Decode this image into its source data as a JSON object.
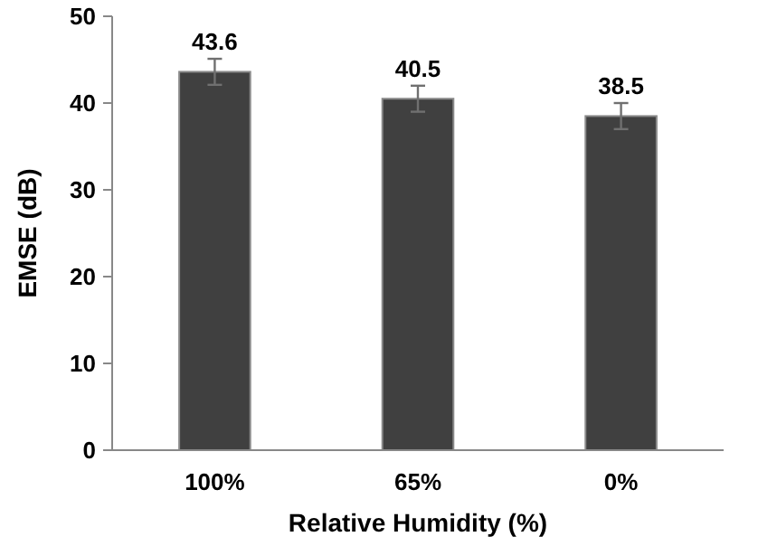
{
  "chart_data": {
    "type": "bar",
    "xlabel": "Relative Humidity (%)",
    "ylabel": "EMSE (dB)",
    "categories": [
      "100%",
      "65%",
      "0%"
    ],
    "values": [
      43.6,
      40.5,
      38.5
    ],
    "errors": [
      1.5,
      1.5,
      1.5
    ],
    "color": "#404040",
    "ylim": [
      0,
      50
    ],
    "yticks": [
      0,
      10,
      20,
      30,
      40,
      50
    ],
    "data_labels": true,
    "grid": false
  }
}
